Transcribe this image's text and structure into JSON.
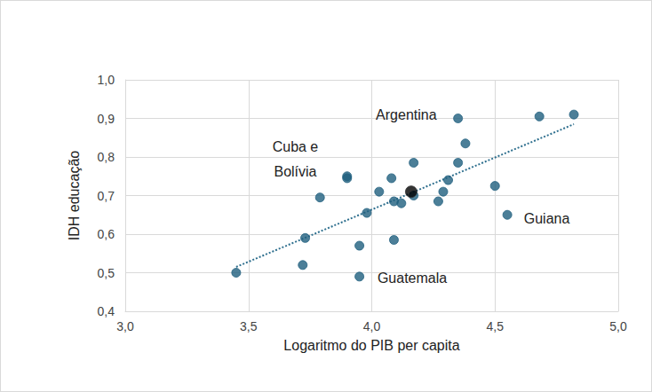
{
  "chart_data": {
    "type": "scatter",
    "x_label": "Logaritmo do PIB per capita",
    "y_label": "IDH educação",
    "xlim": [
      3.0,
      5.0
    ],
    "xticks": [
      {
        "value": 3.0,
        "label": "3,0"
      },
      {
        "value": 3.5,
        "label": "3,5"
      },
      {
        "value": 4.0,
        "label": "4,0"
      },
      {
        "value": 4.5,
        "label": "4,5"
      },
      {
        "value": 5.0,
        "label": "5,0"
      }
    ],
    "ylim": [
      0.4,
      1.0
    ],
    "yticks": [
      {
        "value": 0.4,
        "label": "0,4"
      },
      {
        "value": 0.5,
        "label": "0,5"
      },
      {
        "value": 0.6,
        "label": "0,6"
      },
      {
        "value": 0.7,
        "label": "0,7"
      },
      {
        "value": 0.8,
        "label": "0,8"
      },
      {
        "value": 0.9,
        "label": "0,9"
      },
      {
        "value": 1.0,
        "label": "1,0"
      }
    ],
    "grid": true,
    "series": [
      {
        "type": "scatter",
        "marker": "circle",
        "color": "#1f5f7e",
        "x": [
          3.45,
          3.72,
          3.73,
          3.79,
          3.9,
          3.9,
          3.95,
          3.95,
          3.98,
          4.03,
          4.08,
          4.09,
          4.12,
          4.09,
          4.17,
          4.17,
          4.27,
          4.29,
          4.31,
          4.35,
          4.35,
          4.38,
          4.5,
          4.55,
          4.68,
          4.82
        ],
        "values": [
          0.5,
          0.52,
          0.59,
          0.695,
          0.75,
          0.745,
          0.49,
          0.57,
          0.655,
          0.71,
          0.745,
          0.685,
          0.68,
          0.585,
          0.785,
          0.7,
          0.685,
          0.71,
          0.74,
          0.9,
          0.785,
          0.835,
          0.725,
          0.65,
          0.905,
          0.91
        ]
      },
      {
        "type": "scatter",
        "marker": "circle",
        "color": "#000000",
        "x": [
          4.16
        ],
        "values": [
          0.71
        ]
      },
      {
        "type": "line",
        "line_style": "dotted",
        "color": "#2e6f8e",
        "x": [
          3.45,
          4.82
        ],
        "values": [
          0.515,
          0.885
        ]
      }
    ],
    "annotations": [
      {
        "text": "Argentina",
        "x": 4.14,
        "y": 0.91
      },
      {
        "text": "Cuba e\nBolívia",
        "x": 3.69,
        "y": 0.795
      },
      {
        "text": "Guiana",
        "x": 4.71,
        "y": 0.641
      },
      {
        "text": "Guatemala",
        "x": 4.164,
        "y": 0.486
      }
    ]
  }
}
